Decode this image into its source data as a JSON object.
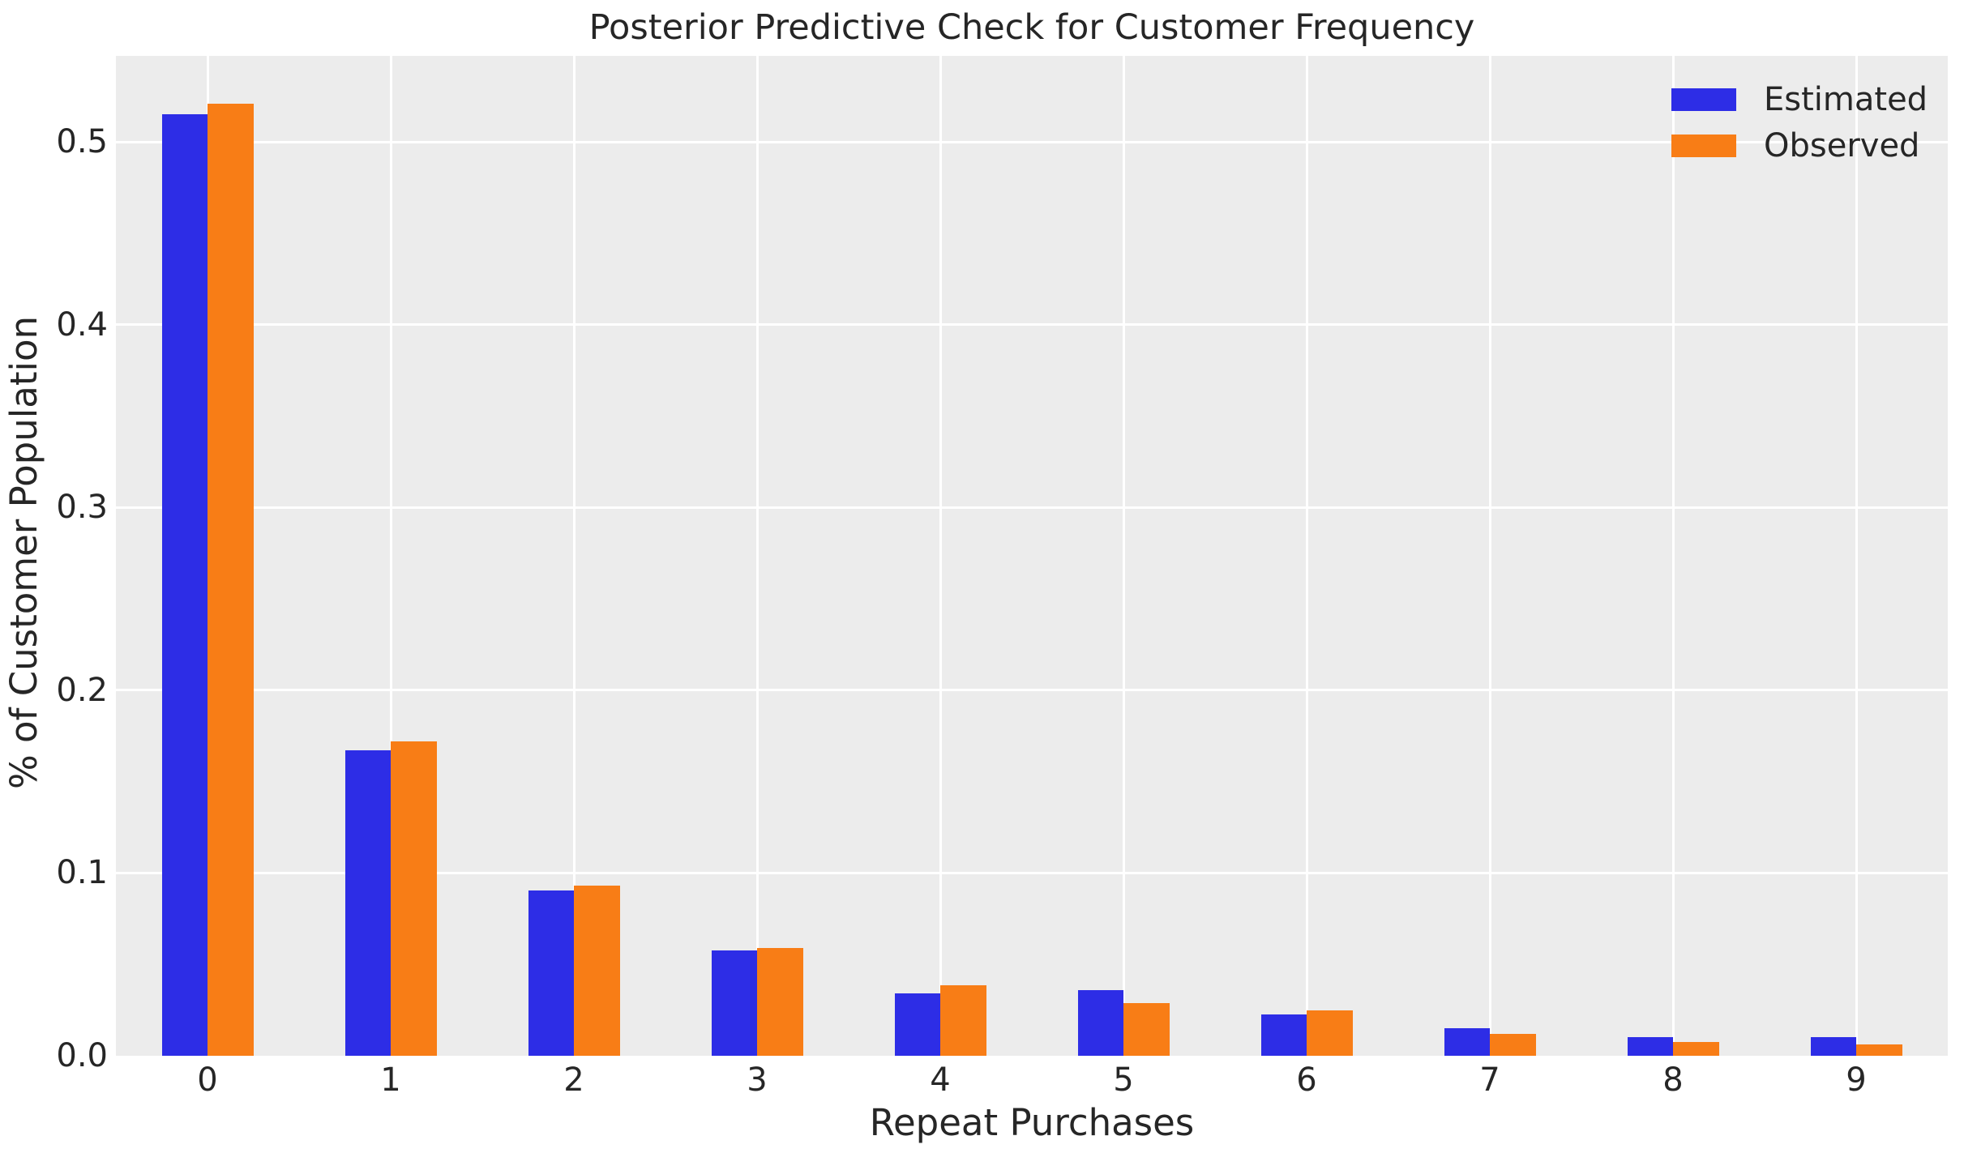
{
  "style": {
    "figure_bg": "#ffffff",
    "axes_bg": "#ececec",
    "grid_color": "#ffffff",
    "text_color": "#262626",
    "estimated_color": "#2d2de6",
    "observed_color": "#f87d16"
  },
  "chart_data": {
    "type": "bar",
    "title": "Posterior Predictive Check for Customer Frequency",
    "xlabel": "Repeat Purchases",
    "ylabel": "% of Customer Population",
    "categories": [
      "0",
      "1",
      "2",
      "3",
      "4",
      "5",
      "6",
      "7",
      "8",
      "9"
    ],
    "series": [
      {
        "name": "Estimated",
        "color": "#2d2de6",
        "values": [
          0.515,
          0.167,
          0.0905,
          0.0575,
          0.034,
          0.036,
          0.0225,
          0.015,
          0.0104,
          0.0101
        ]
      },
      {
        "name": "Observed",
        "color": "#f87d16",
        "values": [
          0.521,
          0.172,
          0.093,
          0.059,
          0.0385,
          0.0287,
          0.0249,
          0.0119,
          0.0077,
          0.006
        ]
      }
    ],
    "ylim": [
      0,
      0.547
    ],
    "yticks": [
      {
        "value": 0.0,
        "label": "0.0"
      },
      {
        "value": 0.1,
        "label": "0.1"
      },
      {
        "value": 0.2,
        "label": "0.2"
      },
      {
        "value": 0.3,
        "label": "0.3"
      },
      {
        "value": 0.4,
        "label": "0.4"
      },
      {
        "value": 0.5,
        "label": "0.5"
      }
    ],
    "grid": true,
    "legend_position": "upper right",
    "bar_width_fraction": 0.25
  }
}
